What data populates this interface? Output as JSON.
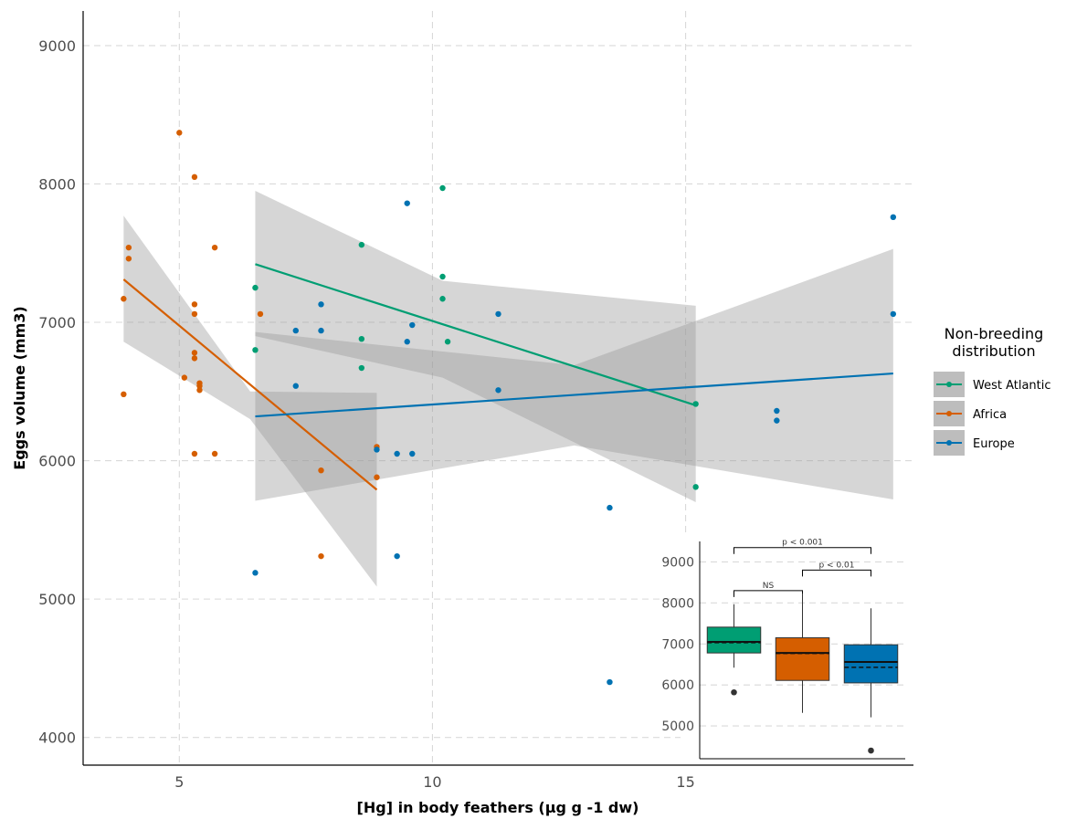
{
  "chart_data": [
    {
      "type": "scatter",
      "xlabel": "[Hg] in body feathers (µg g -1 dw)",
      "ylabel": "Eggs volume (mm3)",
      "xlim": [
        3.1,
        19.5
      ],
      "ylim": [
        3800,
        9250
      ],
      "xticks": [
        5,
        10,
        15
      ],
      "yticks": [
        4000,
        5000,
        6000,
        7000,
        8000,
        9000
      ],
      "grid": true,
      "legend": {
        "title": "Non-breeding distribution",
        "title_lines": [
          "Non-breeding",
          "distribution"
        ],
        "position": "right"
      },
      "series": [
        {
          "name": "West Atlantic",
          "color": "#009E73",
          "points": [
            [
              6.5,
              7250
            ],
            [
              6.5,
              6800
            ],
            [
              8.6,
              7560
            ],
            [
              8.6,
              6880
            ],
            [
              8.6,
              6670
            ],
            [
              10.2,
              7970
            ],
            [
              10.2,
              7330
            ],
            [
              10.2,
              7170
            ],
            [
              10.3,
              6860
            ],
            [
              15.2,
              6410
            ],
            [
              15.2,
              5810
            ]
          ],
          "fit": {
            "x": [
              6.5,
              15.2
            ],
            "y": [
              7420,
              6400
            ]
          },
          "ci": {
            "x": [
              6.5,
              10.2,
              15.2
            ],
            "lower": [
              6900,
              6600,
              5700
            ],
            "upper": [
              7950,
              7300,
              7120
            ]
          }
        },
        {
          "name": "Africa",
          "color": "#D55E00",
          "points": [
            [
              3.9,
              7170
            ],
            [
              4.0,
              7540
            ],
            [
              4.0,
              7460
            ],
            [
              3.9,
              6480
            ],
            [
              5.0,
              8370
            ],
            [
              5.1,
              6600
            ],
            [
              5.3,
              8050
            ],
            [
              5.3,
              7130
            ],
            [
              5.3,
              7060
            ],
            [
              5.3,
              6780
            ],
            [
              5.3,
              6740
            ],
            [
              5.4,
              6540
            ],
            [
              5.4,
              6510
            ],
            [
              5.4,
              6560
            ],
            [
              5.3,
              6050
            ],
            [
              5.7,
              7540
            ],
            [
              5.7,
              6050
            ],
            [
              6.6,
              7060
            ],
            [
              7.8,
              5930
            ],
            [
              7.8,
              5310
            ],
            [
              8.9,
              6100
            ],
            [
              8.9,
              5880
            ]
          ],
          "fit": {
            "x": [
              3.9,
              8.9
            ],
            "y": [
              7310,
              5790
            ]
          },
          "ci": {
            "x": [
              3.9,
              6.4,
              8.9
            ],
            "lower": [
              6860,
              6300,
              5090
            ],
            "upper": [
              7770,
              6500,
              6490
            ]
          }
        },
        {
          "name": "Europe",
          "color": "#0072B2",
          "points": [
            [
              6.5,
              5190
            ],
            [
              7.3,
              6940
            ],
            [
              7.3,
              6540
            ],
            [
              7.8,
              7130
            ],
            [
              7.8,
              6940
            ],
            [
              8.9,
              6080
            ],
            [
              9.3,
              6050
            ],
            [
              9.3,
              5310
            ],
            [
              9.5,
              7860
            ],
            [
              9.5,
              6860
            ],
            [
              9.6,
              6980
            ],
            [
              9.6,
              6050
            ],
            [
              11.3,
              7060
            ],
            [
              11.3,
              6510
            ],
            [
              13.5,
              5660
            ],
            [
              13.5,
              4400
            ],
            [
              16.8,
              6360
            ],
            [
              16.8,
              6290
            ],
            [
              19.1,
              7760
            ],
            [
              19.1,
              7060
            ]
          ],
          "fit": {
            "x": [
              6.5,
              19.1
            ],
            "y": [
              6320,
              6630
            ]
          },
          "ci": {
            "x": [
              6.5,
              12.8,
              19.1
            ],
            "lower": [
              5710,
              6110,
              5720
            ],
            "upper": [
              6930,
              6690,
              7530
            ]
          }
        }
      ]
    },
    {
      "type": "box",
      "ylim": [
        4200,
        9500
      ],
      "yticks": [
        5000,
        6000,
        7000,
        8000,
        9000
      ],
      "grid": true,
      "boxes": [
        {
          "group": "West Atlantic",
          "color": "#009E73",
          "whisker_low": 6420,
          "q1": 6780,
          "median": 7050,
          "mean": 7030,
          "q3": 7410,
          "whisker_high": 7970,
          "outliers": [
            5820
          ]
        },
        {
          "group": "Africa",
          "color": "#D55E00",
          "whisker_low": 5320,
          "q1": 6110,
          "median": 6780,
          "mean": 6770,
          "q3": 7150,
          "whisker_high": 8230,
          "outliers": []
        },
        {
          "group": "Europe",
          "color": "#0072B2",
          "whisker_low": 5210,
          "q1": 6050,
          "median": 6560,
          "mean": 6430,
          "q3": 6980,
          "whisker_high": 7870,
          "outliers": [
            4400
          ]
        }
      ],
      "comparisons": [
        {
          "from": 0,
          "to": 2,
          "label": "p < 0.001",
          "level": 9350
        },
        {
          "from": 0,
          "to": 1,
          "label": "NS",
          "level": 8300
        },
        {
          "from": 1,
          "to": 2,
          "label": "p < 0.01",
          "level": 8800
        }
      ]
    }
  ]
}
